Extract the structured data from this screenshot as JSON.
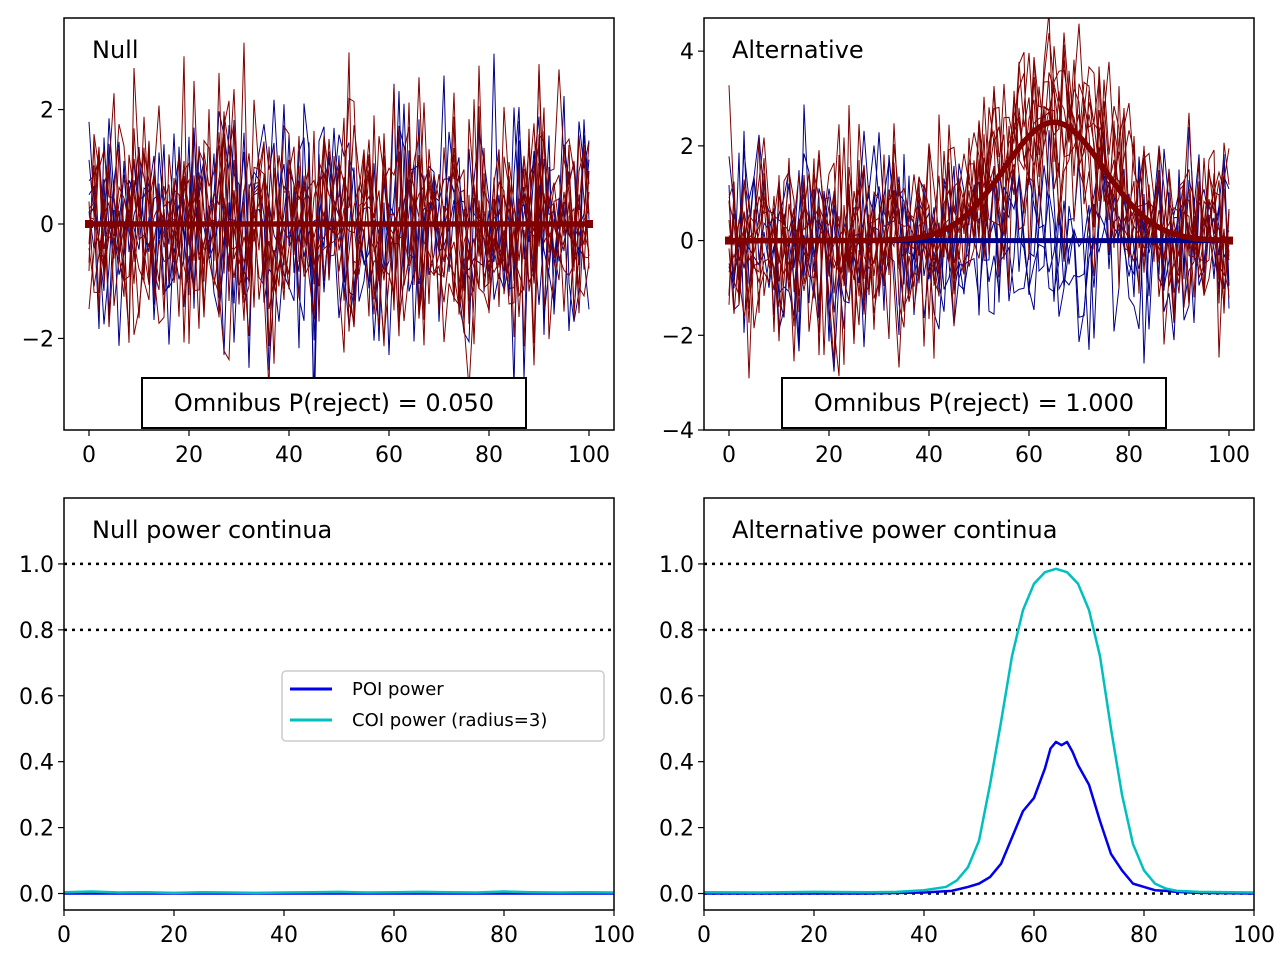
{
  "colors": {
    "blue_dark": "#00008b",
    "red_dark": "#800000",
    "poi_blue": "#0000ee",
    "coi_cyan": "#00bfbf",
    "reference": "#000000"
  },
  "chart_data": [
    {
      "type": "line",
      "title": "Null",
      "annotation": "Omnibus P(reject) = 0.050",
      "xlim": [
        -5,
        105
      ],
      "ylim": [
        -3.6,
        3.6
      ],
      "xticks": [
        0,
        20,
        40,
        60,
        80,
        100
      ],
      "xtick_labels": [
        "0",
        "20",
        "40",
        "60",
        "80",
        "100"
      ],
      "yticks": [
        -2,
        0,
        2
      ],
      "ytick_labels": [
        "−2",
        "0",
        "2"
      ],
      "x_range": [
        0,
        100
      ],
      "noise": {
        "blue_count": 5,
        "red_count": 10,
        "amplitude": 1.0
      },
      "mean_curve": {
        "amplitude": 0,
        "center": 65,
        "width": 10,
        "color": "red_dark"
      },
      "blue_mean_visible": false
    },
    {
      "type": "line",
      "title": "Alternative",
      "annotation": "Omnibus P(reject) = 1.000",
      "xlim": [
        -5,
        105
      ],
      "ylim": [
        -4,
        4.7
      ],
      "xticks": [
        0,
        20,
        40,
        60,
        80,
        100
      ],
      "xtick_labels": [
        "0",
        "20",
        "40",
        "60",
        "80",
        "100"
      ],
      "yticks": [
        -4,
        -2,
        0,
        2,
        4
      ],
      "ytick_labels": [
        "−4",
        "−2",
        "0",
        "2",
        "4"
      ],
      "x_range": [
        0,
        100
      ],
      "noise": {
        "blue_count": 5,
        "red_count": 10,
        "amplitude": 1.0
      },
      "mean_curve": {
        "amplitude": 2.5,
        "center": 65,
        "width": 10,
        "color": "red_dark"
      },
      "blue_mean_visible": true
    },
    {
      "type": "line",
      "title": "Null power continua",
      "xlim": [
        0,
        100
      ],
      "ylim": [
        -0.05,
        1.2
      ],
      "xticks": [
        0,
        20,
        40,
        60,
        80,
        100
      ],
      "xtick_labels": [
        "0",
        "20",
        "40",
        "60",
        "80",
        "100"
      ],
      "yticks": [
        0.0,
        0.2,
        0.4,
        0.6,
        0.8,
        1.0
      ],
      "ytick_labels": [
        "0.0",
        "0.2",
        "0.4",
        "0.6",
        "0.8",
        "1.0"
      ],
      "hlines": [
        1.0,
        0.8
      ],
      "legend": {
        "placement": "center-right",
        "entries": [
          "POI power",
          "COI power (radius=3)"
        ]
      },
      "series": [
        {
          "name": "POI power",
          "color": "poi_blue",
          "x": [
            0,
            10,
            20,
            30,
            40,
            50,
            60,
            70,
            80,
            90,
            100
          ],
          "values": [
            0.0,
            0.0,
            0.0,
            0.0,
            0.0,
            0.0,
            0.0,
            0.0,
            0.0,
            0.0,
            0.0
          ]
        },
        {
          "name": "COI power (radius=3)",
          "color": "coi_cyan",
          "x": [
            0,
            5,
            10,
            15,
            20,
            25,
            30,
            35,
            40,
            45,
            50,
            55,
            60,
            65,
            70,
            75,
            80,
            85,
            90,
            95,
            100
          ],
          "values": [
            0.004,
            0.006,
            0.003,
            0.004,
            0.002,
            0.004,
            0.003,
            0.002,
            0.003,
            0.004,
            0.005,
            0.003,
            0.004,
            0.005,
            0.004,
            0.003,
            0.006,
            0.004,
            0.003,
            0.004,
            0.003
          ]
        }
      ]
    },
    {
      "type": "line",
      "title": "Alternative power continua",
      "xlim": [
        0,
        100
      ],
      "ylim": [
        -0.05,
        1.2
      ],
      "xticks": [
        0,
        20,
        40,
        60,
        80,
        100
      ],
      "xtick_labels": [
        "0",
        "20",
        "40",
        "60",
        "80",
        "100"
      ],
      "yticks": [
        0.0,
        0.2,
        0.4,
        0.6,
        0.8,
        1.0
      ],
      "ytick_labels": [
        "0.0",
        "0.2",
        "0.4",
        "0.6",
        "0.8",
        "1.0"
      ],
      "hlines": [
        1.0,
        0.8,
        0.0
      ],
      "series": [
        {
          "name": "POI power",
          "color": "poi_blue",
          "x": [
            0,
            10,
            20,
            30,
            40,
            45,
            48,
            50,
            52,
            54,
            56,
            58,
            60,
            62,
            63,
            64,
            65,
            66,
            67,
            68,
            70,
            72,
            74,
            76,
            78,
            80,
            82,
            84,
            86,
            90,
            100
          ],
          "values": [
            0.0,
            0.0,
            0.0,
            0.0,
            0.003,
            0.008,
            0.02,
            0.03,
            0.05,
            0.09,
            0.17,
            0.25,
            0.29,
            0.38,
            0.44,
            0.46,
            0.45,
            0.46,
            0.43,
            0.39,
            0.33,
            0.22,
            0.12,
            0.07,
            0.03,
            0.02,
            0.01,
            0.008,
            0.005,
            0.002,
            0.0
          ]
        },
        {
          "name": "COI power (radius=3)",
          "color": "coi_cyan",
          "x": [
            0,
            10,
            20,
            30,
            35,
            40,
            44,
            46,
            48,
            50,
            52,
            54,
            56,
            58,
            60,
            62,
            64,
            66,
            68,
            70,
            72,
            74,
            76,
            78,
            80,
            82,
            84,
            86,
            90,
            100
          ],
          "values": [
            0.004,
            0.003,
            0.005,
            0.004,
            0.005,
            0.01,
            0.02,
            0.04,
            0.08,
            0.16,
            0.33,
            0.52,
            0.72,
            0.86,
            0.94,
            0.975,
            0.985,
            0.975,
            0.94,
            0.86,
            0.72,
            0.5,
            0.3,
            0.15,
            0.07,
            0.03,
            0.015,
            0.008,
            0.005,
            0.003
          ]
        }
      ]
    }
  ]
}
